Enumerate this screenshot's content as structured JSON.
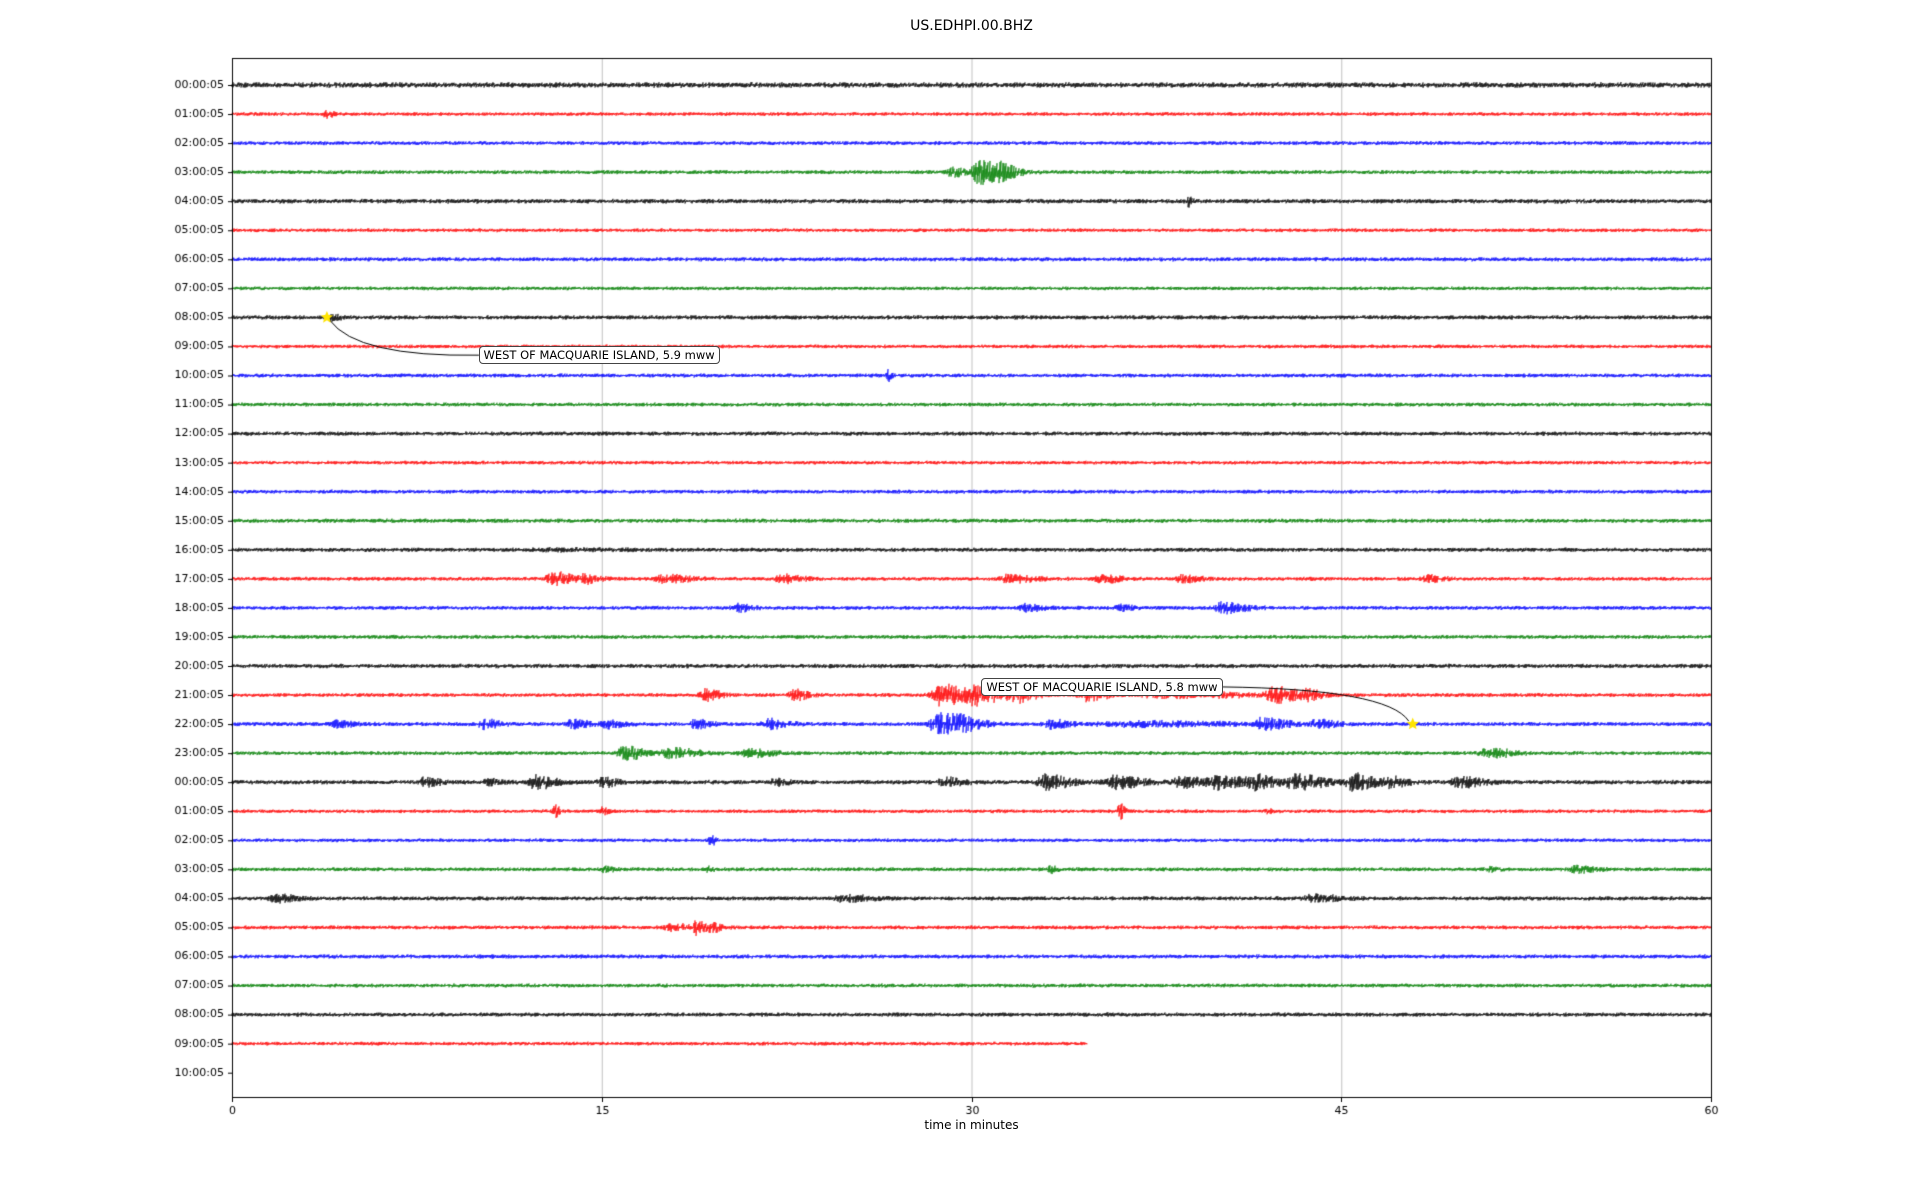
{
  "chart_data": {
    "type": "line",
    "title": "US.EDHPI.00.BHZ",
    "xlabel": "time in minutes",
    "xlim": [
      0,
      60
    ],
    "xticks": [
      0,
      15,
      30,
      45,
      60
    ],
    "grid": true,
    "grid_color": "#b0b0b0",
    "palette": [
      "#000000",
      "#ff0000",
      "#0000ff",
      "#008000"
    ],
    "star_color": "#ffe400",
    "rows": [
      {
        "label": "00:00:05",
        "base": 2.2,
        "bursts": []
      },
      {
        "label": "01:00:05",
        "base": 1.4,
        "bursts": [
          [
            3.8,
            0.15,
            3.5
          ]
        ]
      },
      {
        "label": "02:00:05",
        "base": 1.5,
        "bursts": []
      },
      {
        "label": "03:00:05",
        "base": 1.5,
        "bursts": [
          [
            29.2,
            0.25,
            5
          ],
          [
            30.3,
            0.45,
            12
          ],
          [
            31.1,
            0.4,
            5
          ]
        ]
      },
      {
        "label": "04:00:05",
        "base": 1.8,
        "bursts": [
          [
            38.8,
            0.06,
            6
          ]
        ]
      },
      {
        "label": "05:00:05",
        "base": 1.4,
        "bursts": []
      },
      {
        "label": "06:00:05",
        "base": 1.6,
        "bursts": []
      },
      {
        "label": "07:00:05",
        "base": 1.4,
        "bursts": []
      },
      {
        "label": "08:00:05",
        "base": 1.7,
        "bursts": [
          [
            4.0,
            0.2,
            2.5
          ]
        ]
      },
      {
        "label": "09:00:05",
        "base": 1.4,
        "bursts": []
      },
      {
        "label": "10:00:05",
        "base": 1.5,
        "bursts": [
          [
            26.6,
            0.08,
            5
          ]
        ]
      },
      {
        "label": "11:00:05",
        "base": 1.5,
        "bursts": []
      },
      {
        "label": "12:00:05",
        "base": 1.6,
        "bursts": []
      },
      {
        "label": "13:00:05",
        "base": 1.4,
        "bursts": []
      },
      {
        "label": "14:00:05",
        "base": 1.5,
        "bursts": []
      },
      {
        "label": "15:00:05",
        "base": 1.6,
        "bursts": []
      },
      {
        "label": "16:00:05",
        "base": 1.6,
        "bursts": [
          [
            13.0,
            1.5,
            0.8
          ]
        ]
      },
      {
        "label": "17:00:05",
        "base": 1.5,
        "bursts": [
          [
            13.0,
            0.4,
            7
          ],
          [
            14.3,
            0.3,
            4
          ],
          [
            17.5,
            0.5,
            4
          ],
          [
            22.3,
            0.4,
            4.5
          ],
          [
            31.5,
            0.5,
            4
          ],
          [
            35.3,
            0.4,
            3.5
          ],
          [
            38.5,
            0.4,
            3.5
          ],
          [
            48.5,
            0.3,
            3
          ]
        ]
      },
      {
        "label": "18:00:05",
        "base": 1.5,
        "bursts": [
          [
            20.5,
            0.3,
            3.5
          ],
          [
            32.2,
            0.4,
            3
          ],
          [
            36.0,
            0.3,
            2.5
          ],
          [
            40.2,
            0.5,
            5
          ]
        ]
      },
      {
        "label": "19:00:05",
        "base": 1.5,
        "bursts": []
      },
      {
        "label": "20:00:05",
        "base": 1.7,
        "bursts": []
      },
      {
        "label": "21:00:05",
        "base": 1.5,
        "bursts": [
          [
            19.2,
            0.3,
            6
          ],
          [
            22.8,
            0.3,
            5
          ],
          [
            28.7,
            0.5,
            11
          ],
          [
            30.2,
            0.6,
            9
          ],
          [
            31.8,
            0.4,
            6
          ],
          [
            34.6,
            0.4,
            6
          ],
          [
            38.0,
            1.8,
            2.5
          ],
          [
            42.3,
            0.5,
            7
          ],
          [
            43.6,
            0.3,
            4
          ]
        ]
      },
      {
        "label": "22:00:05",
        "base": 1.6,
        "bursts": [
          [
            4.2,
            0.35,
            3
          ],
          [
            10.2,
            0.35,
            4
          ],
          [
            13.8,
            0.4,
            3.5
          ],
          [
            15.2,
            0.35,
            3.5
          ],
          [
            18.8,
            0.35,
            4
          ],
          [
            21.8,
            0.4,
            4.5
          ],
          [
            28.6,
            0.4,
            13
          ],
          [
            29.6,
            0.5,
            6
          ],
          [
            33.2,
            0.4,
            4
          ],
          [
            36.5,
            2.0,
            2.2
          ],
          [
            41.8,
            0.5,
            5
          ],
          [
            44.0,
            0.4,
            4
          ]
        ]
      },
      {
        "label": "23:00:05",
        "base": 1.5,
        "bursts": [
          [
            15.9,
            0.4,
            6.5
          ],
          [
            17.8,
            0.6,
            4.5
          ],
          [
            21.0,
            0.5,
            3.5
          ],
          [
            50.9,
            0.5,
            4.5
          ]
        ]
      },
      {
        "label": "00:00:05",
        "base": 1.7,
        "bursts": [
          [
            7.8,
            0.3,
            4
          ],
          [
            10.4,
            0.3,
            3
          ],
          [
            12.3,
            0.4,
            7
          ],
          [
            15.0,
            0.3,
            4.5
          ],
          [
            22.0,
            0.3,
            3
          ],
          [
            28.9,
            0.4,
            4
          ],
          [
            33.0,
            0.5,
            7
          ],
          [
            35.8,
            0.6,
            6
          ],
          [
            38.5,
            0.5,
            5
          ],
          [
            40.0,
            0.6,
            6
          ],
          [
            41.5,
            0.5,
            6
          ],
          [
            43.2,
            0.6,
            7
          ],
          [
            45.5,
            0.5,
            8
          ],
          [
            47.0,
            0.4,
            4
          ],
          [
            49.8,
            0.5,
            5
          ]
        ]
      },
      {
        "label": "01:00:05",
        "base": 1.4,
        "bursts": [
          [
            13.1,
            0.12,
            6
          ],
          [
            15.0,
            0.12,
            4
          ],
          [
            36.0,
            0.12,
            7
          ],
          [
            42.0,
            0.1,
            2.5
          ]
        ]
      },
      {
        "label": "02:00:05",
        "base": 1.4,
        "bursts": [
          [
            19.4,
            0.1,
            6
          ]
        ]
      },
      {
        "label": "03:00:05",
        "base": 1.5,
        "bursts": [
          [
            15.1,
            0.15,
            3.5
          ],
          [
            19.3,
            0.1,
            2.5
          ],
          [
            33.2,
            0.15,
            3
          ],
          [
            51.0,
            0.2,
            2
          ],
          [
            54.5,
            0.4,
            3
          ]
        ]
      },
      {
        "label": "04:00:05",
        "base": 1.6,
        "bursts": [
          [
            1.8,
            0.5,
            3
          ],
          [
            24.8,
            0.6,
            3
          ],
          [
            43.8,
            0.6,
            3
          ]
        ]
      },
      {
        "label": "05:00:05",
        "base": 1.5,
        "bursts": [
          [
            17.8,
            0.4,
            3
          ],
          [
            18.8,
            0.3,
            6
          ],
          [
            19.5,
            0.2,
            3
          ]
        ]
      },
      {
        "label": "06:00:05",
        "base": 1.6,
        "bursts": []
      },
      {
        "label": "07:00:05",
        "base": 1.5,
        "bursts": []
      },
      {
        "label": "08:00:05",
        "base": 1.6,
        "bursts": []
      },
      {
        "label": "09:00:05",
        "base": 1.4,
        "end": 34.7,
        "bursts": []
      },
      {
        "label": "10:00:05",
        "base": 0,
        "end": 0,
        "bursts": []
      }
    ],
    "annotations": [
      {
        "text": "WEST OF MACQUARIE ISLAND, 5.9 mww",
        "star_row": 8,
        "star_minute": 3.85,
        "box_minute": 10.0,
        "box_row": 9.3
      },
      {
        "text": "WEST OF MACQUARIE ISLAND, 5.8 mww",
        "star_row": 22,
        "star_minute": 47.9,
        "box_minute": 30.4,
        "box_row": 20.72
      }
    ]
  }
}
